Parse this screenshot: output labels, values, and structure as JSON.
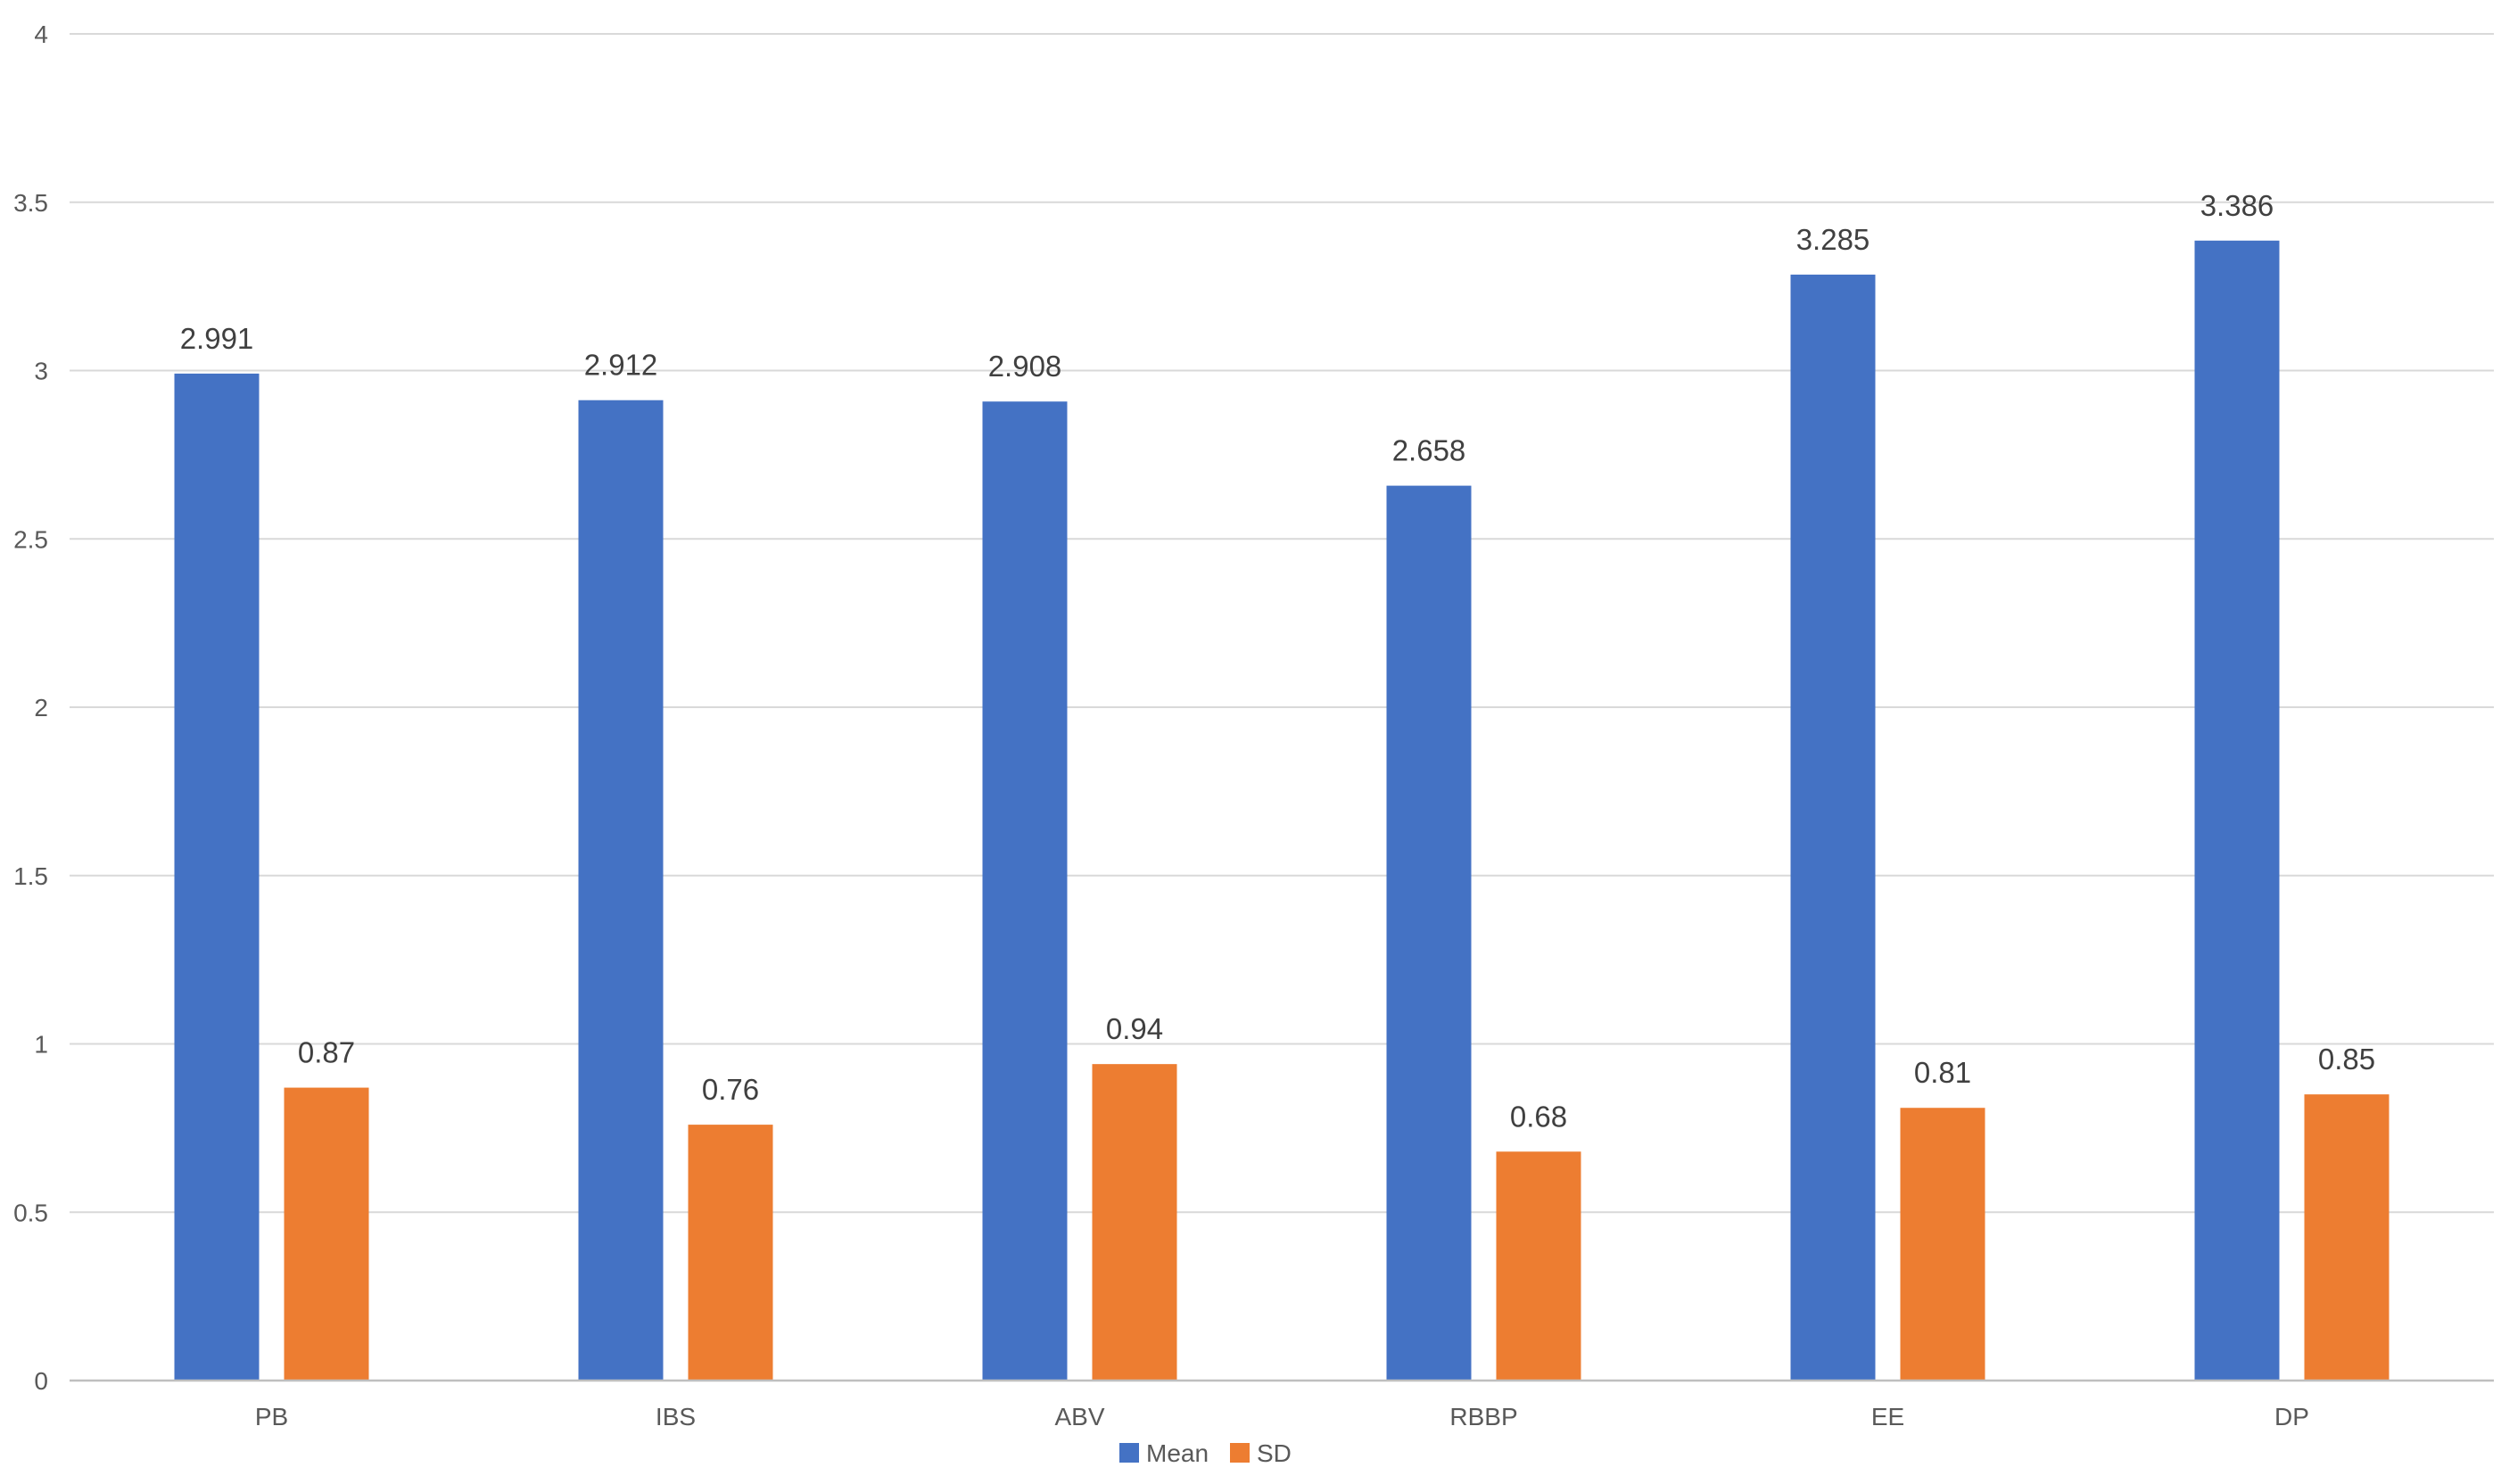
{
  "chart_data": {
    "type": "bar",
    "categories": [
      "PB",
      "IBS",
      "ABV",
      "RBBP",
      "EE",
      "DP"
    ],
    "series": [
      {
        "name": "Mean",
        "values": [
          2.991,
          2.912,
          2.908,
          2.658,
          3.285,
          3.386
        ],
        "color": "#4472C4"
      },
      {
        "name": "SD",
        "values": [
          0.87,
          0.76,
          0.94,
          0.68,
          0.81,
          0.85
        ],
        "color": "#ED7D31"
      }
    ],
    "data_labels": {
      "Mean": [
        "2.991",
        "2.912",
        "2.908",
        "2.658",
        "3.285",
        "3.386"
      ],
      "SD": [
        "0.87",
        "0.76",
        "0.94",
        "0.68",
        "0.81",
        "0.85"
      ]
    },
    "yticks": [
      "0",
      "0.5",
      "1",
      "1.5",
      "2",
      "2.5",
      "3",
      "3.5",
      "4"
    ],
    "ylim": [
      0,
      4
    ],
    "grid": true,
    "legend": "bottom-center",
    "title": "",
    "xlabel": "",
    "ylabel": ""
  }
}
